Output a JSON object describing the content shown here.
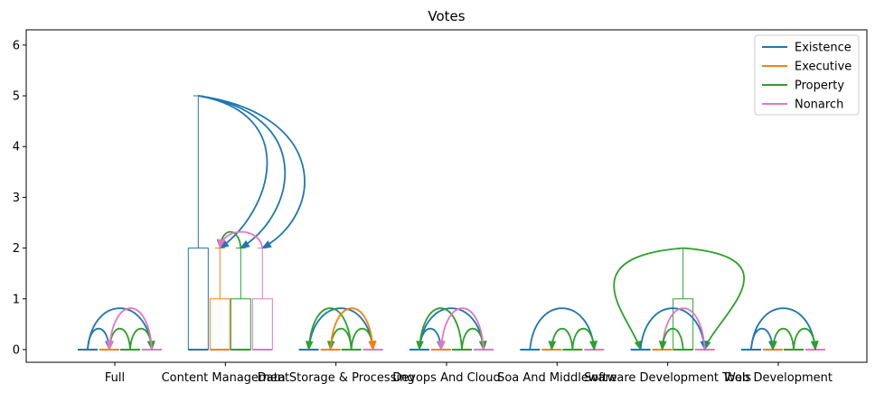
{
  "chart_data": {
    "type": "box",
    "title": "Votes",
    "xlabel": "",
    "ylabel": "",
    "ylim": [
      -0.25,
      6.3
    ],
    "yticks": [
      0,
      1,
      2,
      3,
      4,
      5,
      6
    ],
    "legend_placement": "top-right",
    "categories": [
      "Full",
      "Content Management",
      "Data Storage & Processing",
      "Devops And Cloud",
      "Soa And Middleware",
      "Software Development Tools",
      "Web Development"
    ],
    "series": [
      {
        "name": "Existence",
        "color": "#1f77b4"
      },
      {
        "name": "Executive",
        "color": "#ff7f0e"
      },
      {
        "name": "Property",
        "color": "#2ca02c"
      },
      {
        "name": "Nonarch",
        "color": "#e377c2"
      }
    ],
    "boxes": [
      {
        "category": 0,
        "series": 0,
        "min": 0,
        "q1": 0,
        "median": 0,
        "q3": 0,
        "max": 0
      },
      {
        "category": 0,
        "series": 1,
        "min": 0,
        "q1": 0,
        "median": 0,
        "q3": 0,
        "max": 0
      },
      {
        "category": 0,
        "series": 2,
        "min": 0,
        "q1": 0,
        "median": 0,
        "q3": 0,
        "max": 0
      },
      {
        "category": 0,
        "series": 3,
        "min": 0,
        "q1": 0,
        "median": 0,
        "q3": 0,
        "max": 0
      },
      {
        "category": 1,
        "series": 0,
        "min": 0,
        "q1": 0,
        "median": 0,
        "q3": 2,
        "max": 5
      },
      {
        "category": 1,
        "series": 1,
        "min": 0,
        "q1": 0,
        "median": 0,
        "q3": 1,
        "max": 2
      },
      {
        "category": 1,
        "series": 2,
        "min": 0,
        "q1": 0,
        "median": 0,
        "q3": 1,
        "max": 2
      },
      {
        "category": 1,
        "series": 3,
        "min": 0,
        "q1": 0,
        "median": 0,
        "q3": 1,
        "max": 2
      },
      {
        "category": 2,
        "series": 0,
        "min": 0,
        "q1": 0,
        "median": 0,
        "q3": 0,
        "max": 0
      },
      {
        "category": 2,
        "series": 1,
        "min": 0,
        "q1": 0,
        "median": 0,
        "q3": 0,
        "max": 0
      },
      {
        "category": 2,
        "series": 2,
        "min": 0,
        "q1": 0,
        "median": 0,
        "q3": 0,
        "max": 0
      },
      {
        "category": 2,
        "series": 3,
        "min": 0,
        "q1": 0,
        "median": 0,
        "q3": 0,
        "max": 0
      },
      {
        "category": 3,
        "series": 0,
        "min": 0,
        "q1": 0,
        "median": 0,
        "q3": 0,
        "max": 0
      },
      {
        "category": 3,
        "series": 1,
        "min": 0,
        "q1": 0,
        "median": 0,
        "q3": 0,
        "max": 0
      },
      {
        "category": 3,
        "series": 2,
        "min": 0,
        "q1": 0,
        "median": 0,
        "q3": 0,
        "max": 0
      },
      {
        "category": 3,
        "series": 3,
        "min": 0,
        "q1": 0,
        "median": 0,
        "q3": 0,
        "max": 0
      },
      {
        "category": 4,
        "series": 0,
        "min": 0,
        "q1": 0,
        "median": 0,
        "q3": 0,
        "max": 0
      },
      {
        "category": 4,
        "series": 1,
        "min": 0,
        "q1": 0,
        "median": 0,
        "q3": 0,
        "max": 0
      },
      {
        "category": 4,
        "series": 2,
        "min": 0,
        "q1": 0,
        "median": 0,
        "q3": 0,
        "max": 0
      },
      {
        "category": 4,
        "series": 3,
        "min": 0,
        "q1": 0,
        "median": 0,
        "q3": 0,
        "max": 0
      },
      {
        "category": 5,
        "series": 0,
        "min": 0,
        "q1": 0,
        "median": 0,
        "q3": 0,
        "max": 0
      },
      {
        "category": 5,
        "series": 1,
        "min": 0,
        "q1": 0,
        "median": 0,
        "q3": 0,
        "max": 0
      },
      {
        "category": 5,
        "series": 2,
        "min": 0,
        "q1": 0,
        "median": 0,
        "q3": 1,
        "max": 2
      },
      {
        "category": 5,
        "series": 3,
        "min": 0,
        "q1": 0,
        "median": 0,
        "q3": 0,
        "max": 0
      },
      {
        "category": 6,
        "series": 0,
        "min": 0,
        "q1": 0,
        "median": 0,
        "q3": 0,
        "max": 0
      },
      {
        "category": 6,
        "series": 1,
        "min": 0,
        "q1": 0,
        "median": 0,
        "q3": 0,
        "max": 0
      },
      {
        "category": 6,
        "series": 2,
        "min": 0,
        "q1": 0,
        "median": 0,
        "q3": 0,
        "max": 0
      },
      {
        "category": 6,
        "series": 3,
        "min": 0,
        "q1": 0,
        "median": 0,
        "q3": 0,
        "max": 0
      }
    ],
    "arcs": [
      {
        "category": 0,
        "from": 0,
        "to": 1,
        "color_series": 0,
        "level": 0
      },
      {
        "category": 0,
        "from": 0,
        "to": 3,
        "color_series": 0,
        "level": 0
      },
      {
        "category": 0,
        "from": 2,
        "to": 1,
        "color_series": 2,
        "level": 0
      },
      {
        "category": 0,
        "from": 2,
        "to": 3,
        "color_series": 2,
        "level": 0
      },
      {
        "category": 0,
        "from": 3,
        "to": 1,
        "color_series": 3,
        "level": 0
      },
      {
        "category": 1,
        "from": 0,
        "to": 1,
        "color_series": 0,
        "level": 5
      },
      {
        "category": 1,
        "from": 0,
        "to": 2,
        "color_series": 0,
        "level": 5
      },
      {
        "category": 1,
        "from": 0,
        "to": 3,
        "color_series": 0,
        "level": 5
      },
      {
        "category": 1,
        "from": 2,
        "to": 1,
        "color_series": 2,
        "level": 2
      },
      {
        "category": 1,
        "from": 3,
        "to": 1,
        "color_series": 3,
        "level": 2
      },
      {
        "category": 2,
        "from": 0,
        "to": 3,
        "color_series": 0,
        "level": 0
      },
      {
        "category": 2,
        "from": 2,
        "to": 0,
        "color_series": 2,
        "level": 0
      },
      {
        "category": 2,
        "from": 2,
        "to": 1,
        "color_series": 2,
        "level": 0
      },
      {
        "category": 2,
        "from": 2,
        "to": 3,
        "color_series": 2,
        "level": 0
      },
      {
        "category": 2,
        "from": 1,
        "to": 3,
        "color_series": 1,
        "level": 0
      },
      {
        "category": 3,
        "from": 0,
        "to": 1,
        "color_series": 0,
        "level": 0
      },
      {
        "category": 3,
        "from": 0,
        "to": 3,
        "color_series": 0,
        "level": 0
      },
      {
        "category": 3,
        "from": 2,
        "to": 0,
        "color_series": 2,
        "level": 0
      },
      {
        "category": 3,
        "from": 2,
        "to": 3,
        "color_series": 2,
        "level": 0
      },
      {
        "category": 3,
        "from": 3,
        "to": 1,
        "color_series": 3,
        "level": 0
      },
      {
        "category": 4,
        "from": 0,
        "to": 3,
        "color_series": 0,
        "level": 0
      },
      {
        "category": 4,
        "from": 2,
        "to": 1,
        "color_series": 2,
        "level": 0
      },
      {
        "category": 4,
        "from": 2,
        "to": 3,
        "color_series": 2,
        "level": 0
      },
      {
        "category": 5,
        "from": 2,
        "to": 0,
        "color_series": 2,
        "level": 2
      },
      {
        "category": 5,
        "from": 2,
        "to": 3,
        "color_series": 2,
        "level": 2
      },
      {
        "category": 5,
        "from": 0,
        "to": 3,
        "color_series": 0,
        "level": 0
      },
      {
        "category": 5,
        "from": 3,
        "to": 1,
        "color_series": 3,
        "level": 0
      },
      {
        "category": 5,
        "from": 2,
        "to": 1,
        "color_series": 2,
        "level": 0
      },
      {
        "category": 6,
        "from": 0,
        "to": 1,
        "color_series": 0,
        "level": 0
      },
      {
        "category": 6,
        "from": 0,
        "to": 3,
        "color_series": 0,
        "level": 0
      },
      {
        "category": 6,
        "from": 2,
        "to": 1,
        "color_series": 2,
        "level": 0
      },
      {
        "category": 6,
        "from": 2,
        "to": 3,
        "color_series": 2,
        "level": 0
      }
    ]
  }
}
